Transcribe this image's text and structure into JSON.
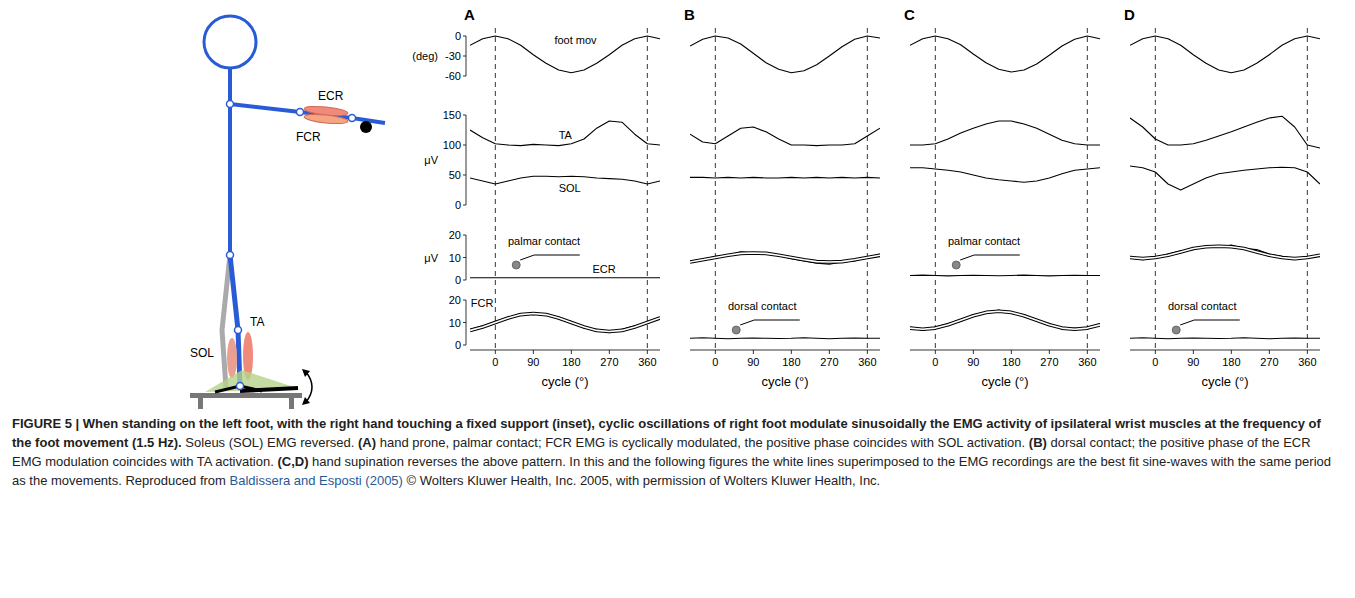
{
  "chart_data": [
    {
      "type": "line",
      "title": "A",
      "xlabel": "cycle (°)",
      "xlim": [
        -60,
        390
      ],
      "xticks": [
        0,
        90,
        180,
        270,
        360
      ],
      "x": [
        -60,
        -30,
        0,
        30,
        60,
        90,
        120,
        150,
        180,
        210,
        240,
        270,
        300,
        330,
        360,
        390
      ],
      "axes": [
        {
          "ylabel": "(deg)",
          "ylim": [
            -60,
            0
          ],
          "yticks": [
            0,
            -30,
            -60
          ],
          "series": [
            {
              "name": "foot mov",
              "color": "#000000",
              "values": [
                -14,
                -4,
                0,
                -4,
                -14,
                -28,
                -41,
                -51,
                -55,
                -51,
                -41,
                -28,
                -14,
                -4,
                0,
                -4
              ]
            }
          ]
        },
        {
          "ylabel": "μV",
          "ylim": [
            0,
            150
          ],
          "yticks": [
            150,
            100,
            50,
            0
          ],
          "series": [
            {
              "name": "TA",
              "color": "#000000",
              "values": [
                125,
                112,
                102,
                100,
                99,
                101,
                100,
                99,
                102,
                110,
                128,
                140,
                138,
                118,
                102,
                100
              ]
            },
            {
              "name": "SOL",
              "color": "#000000",
              "values": [
                45,
                40,
                35,
                40,
                45,
                48,
                48,
                47,
                48,
                47,
                45,
                44,
                43,
                40,
                35,
                40
              ]
            }
          ]
        },
        {
          "ylabel": "μV",
          "ylim": [
            0,
            20
          ],
          "yticks": [
            20,
            10,
            0
          ],
          "annotation": "palmar contact",
          "series": [
            {
              "name": "ECR",
              "color": "#000000",
              "values": [
                1,
                1,
                1,
                1,
                1,
                1,
                1,
                1,
                1,
                1,
                1,
                1,
                1,
                1,
                1,
                1
              ]
            }
          ]
        },
        {
          "ylim": [
            0,
            20
          ],
          "yticks": [
            20,
            10,
            0
          ],
          "series": [
            {
              "name": "FCR",
              "color": "#000000",
              "values": [
                7,
                8.5,
                10.5,
                11.5,
                14,
                13.5,
                14,
                11.5,
                10.5,
                7.5,
                7,
                5.5,
                7,
                8.5,
                9.5,
                12.5
              ]
            },
            {
              "color": "#ffffff",
              "line_style": "outlined",
              "values": [
                6.5,
                8,
                10,
                12,
                13.5,
                14,
                13.5,
                12,
                10,
                8,
                6.5,
                6,
                6.5,
                8,
                10,
                12
              ]
            }
          ]
        }
      ]
    },
    {
      "type": "line",
      "title": "B",
      "xlabel": "cycle (°)",
      "xlim": [
        -60,
        390
      ],
      "xticks": [
        0,
        90,
        180,
        270,
        360
      ],
      "tick_labels": "x",
      "x": [
        -60,
        -30,
        0,
        30,
        60,
        90,
        120,
        150,
        180,
        210,
        240,
        270,
        300,
        330,
        360,
        390
      ],
      "axes": [
        {
          "ylim": [
            -60,
            0
          ],
          "series": [
            {
              "color": "#000000",
              "values": [
                -15,
                -5,
                0,
                -3,
                -12,
                -26,
                -40,
                -50,
                -55,
                -52,
                -43,
                -30,
                -16,
                -5,
                0,
                -3
              ]
            }
          ]
        },
        {
          "ylim": [
            0,
            150
          ],
          "series": [
            {
              "color": "#000000",
              "values": [
                118,
                105,
                102,
                115,
                128,
                130,
                122,
                110,
                100,
                100,
                99,
                100,
                100,
                102,
                115,
                128
              ]
            },
            {
              "color": "#000000",
              "values": [
                46,
                46,
                45,
                46,
                45,
                46,
                45,
                45,
                46,
                45,
                46,
                45,
                46,
                45,
                46,
                45
              ]
            }
          ]
        },
        {
          "ylim": [
            0,
            20
          ],
          "series": [
            {
              "color": "#000000",
              "values": [
                8.5,
                9,
                10.5,
                11,
                12.5,
                12,
                11.5,
                11,
                9.5,
                8.5,
                7.5,
                7,
                8,
                8.5,
                10,
                11.5
              ]
            },
            {
              "color": "#ffffff",
              "line_style": "outlined",
              "values": [
                8,
                9,
                10,
                11,
                11.8,
                12,
                11.8,
                11,
                10,
                9,
                8.2,
                8,
                8.2,
                9,
                10,
                11
              ]
            }
          ]
        },
        {
          "ylim": [
            0,
            20
          ],
          "annotation": "dorsal contact",
          "series": [
            {
              "color": "#000000",
              "values": [
                3,
                3.2,
                3,
                2.8,
                3,
                3.1,
                3,
                2.9,
                3,
                3.2,
                3,
                2.8,
                3,
                3.1,
                3,
                3
              ]
            }
          ]
        }
      ]
    },
    {
      "type": "line",
      "title": "C",
      "xlabel": "cycle (°)",
      "xlim": [
        -60,
        390
      ],
      "xticks": [
        0,
        90,
        180,
        270,
        360
      ],
      "tick_labels": "x",
      "x": [
        -60,
        -30,
        0,
        30,
        60,
        90,
        120,
        150,
        180,
        210,
        240,
        270,
        300,
        330,
        360,
        390
      ],
      "axes": [
        {
          "ylim": [
            -60,
            0
          ],
          "series": [
            {
              "color": "#000000",
              "values": [
                -14,
                -4,
                0,
                -4,
                -13,
                -27,
                -40,
                -50,
                -54,
                -51,
                -42,
                -29,
                -15,
                -5,
                0,
                -4
              ]
            }
          ]
        },
        {
          "ylim": [
            0,
            150
          ],
          "series": [
            {
              "color": "#000000",
              "values": [
                100,
                100,
                102,
                110,
                120,
                128,
                135,
                140,
                140,
                135,
                128,
                118,
                108,
                102,
                100,
                100
              ]
            },
            {
              "color": "#000000",
              "values": [
                62,
                62,
                60,
                58,
                55,
                50,
                45,
                42,
                40,
                38,
                40,
                45,
                52,
                58,
                60,
                62
              ]
            }
          ]
        },
        {
          "ylim": [
            0,
            20
          ],
          "annotation": "palmar contact",
          "series": [
            {
              "color": "#000000",
              "values": [
                2,
                2.2,
                2,
                1.8,
                2,
                2.1,
                2,
                1.9,
                2,
                2.2,
                2,
                1.8,
                2,
                2.1,
                2,
                2
              ]
            }
          ]
        },
        {
          "ylim": [
            0,
            20
          ],
          "series": [
            {
              "color": "#000000",
              "values": [
                8,
                6.5,
                8,
                9.5,
                10.5,
                13.5,
                14,
                15.5,
                14,
                13.5,
                11,
                9.5,
                7,
                7.5,
                7,
                9.5
              ]
            },
            {
              "color": "#ffffff",
              "line_style": "outlined",
              "values": [
                7.5,
                7,
                7.5,
                9,
                11,
                13,
                14.5,
                15,
                14.5,
                13,
                11,
                9,
                7.5,
                7,
                7.5,
                9
              ]
            }
          ]
        }
      ]
    },
    {
      "type": "line",
      "title": "D",
      "xlabel": "cycle (°)",
      "xlim": [
        -60,
        390
      ],
      "xticks": [
        0,
        90,
        180,
        270,
        360
      ],
      "tick_labels": "x",
      "x": [
        -60,
        -30,
        0,
        30,
        60,
        90,
        120,
        150,
        180,
        210,
        240,
        270,
        300,
        330,
        360,
        390
      ],
      "axes": [
        {
          "ylim": [
            -60,
            0
          ],
          "series": [
            {
              "color": "#000000",
              "values": [
                -14,
                -4,
                0,
                -4,
                -14,
                -28,
                -41,
                -51,
                -55,
                -51,
                -41,
                -28,
                -14,
                -4,
                0,
                -4
              ]
            }
          ]
        },
        {
          "ylim": [
            0,
            150
          ],
          "series": [
            {
              "color": "#000000",
              "values": [
                145,
                130,
                110,
                100,
                100,
                102,
                108,
                115,
                122,
                130,
                138,
                145,
                148,
                130,
                100,
                95
              ]
            },
            {
              "color": "#000000",
              "values": [
                65,
                62,
                55,
                35,
                25,
                35,
                45,
                52,
                55,
                58,
                60,
                62,
                63,
                62,
                55,
                35
              ]
            }
          ]
        },
        {
          "ylim": [
            0,
            20
          ],
          "series": [
            {
              "color": "#000000",
              "values": [
                10.5,
                9,
                10,
                11.5,
                13,
                13.5,
                15,
                14.5,
                15.5,
                14,
                13.5,
                11.5,
                10.5,
                9.5,
                10,
                11
              ]
            },
            {
              "color": "#ffffff",
              "line_style": "outlined",
              "values": [
                10,
                9.5,
                10,
                11,
                12.5,
                14,
                14.8,
                15,
                14.8,
                14,
                12.5,
                11,
                10,
                9.5,
                10,
                11
              ]
            }
          ]
        },
        {
          "ylim": [
            0,
            20
          ],
          "annotation": "dorsal contact",
          "series": [
            {
              "color": "#000000",
              "values": [
                3,
                3.2,
                3,
                2.8,
                3,
                3.1,
                3,
                2.9,
                3,
                3.2,
                3,
                2.8,
                3,
                3.1,
                3,
                3
              ]
            }
          ]
        }
      ]
    }
  ],
  "schematic": {
    "labels": [
      "ECR",
      "FCR",
      "TA",
      "SOL"
    ]
  },
  "caption": {
    "segments": [
      {
        "style": "bold",
        "text": "FIGURE 5 | When standing on the left foot, with the right hand touching a fixed support (inset), cyclic oscillations of right foot modulate sinusoidally the EMG activity of ipsilateral wrist muscles at the frequency of the foot movement (1.5 Hz)."
      },
      {
        "style": "normal",
        "text": " Soleus (SOL) EMG reversed. "
      },
      {
        "style": "bold",
        "text": "(A)"
      },
      {
        "style": "normal",
        "text": " hand prone, palmar contact; FCR EMG is cyclically modulated, the positive phase coincides with SOL activation. "
      },
      {
        "style": "bold",
        "text": "(B)"
      },
      {
        "style": "normal",
        "text": " dorsal contact; the positive phase of the ECR EMG modulation coincides with TA activation. "
      },
      {
        "style": "bold",
        "text": "(C,D)"
      },
      {
        "style": "normal",
        "text": " hand supination reverses the above pattern. In this and the following figures the white lines superimposed to the EMG recordings are the best fit sine-waves with the same period as the movements. Reproduced from "
      },
      {
        "style": "link",
        "text": "Baldissera and Esposti (2005)"
      },
      {
        "style": "normal",
        "text": " © Wolters Kluwer Health, Inc. 2005, with permission of Wolters Kluwer Health, Inc."
      }
    ]
  }
}
